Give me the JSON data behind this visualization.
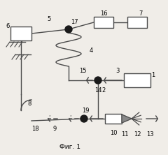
{
  "bg_color": "#f0ede8",
  "line_color": "#4a4a4a",
  "box_color": "#ffffff",
  "dot_color": "#1a1a1a",
  "fig_label": "Фиг. 1"
}
